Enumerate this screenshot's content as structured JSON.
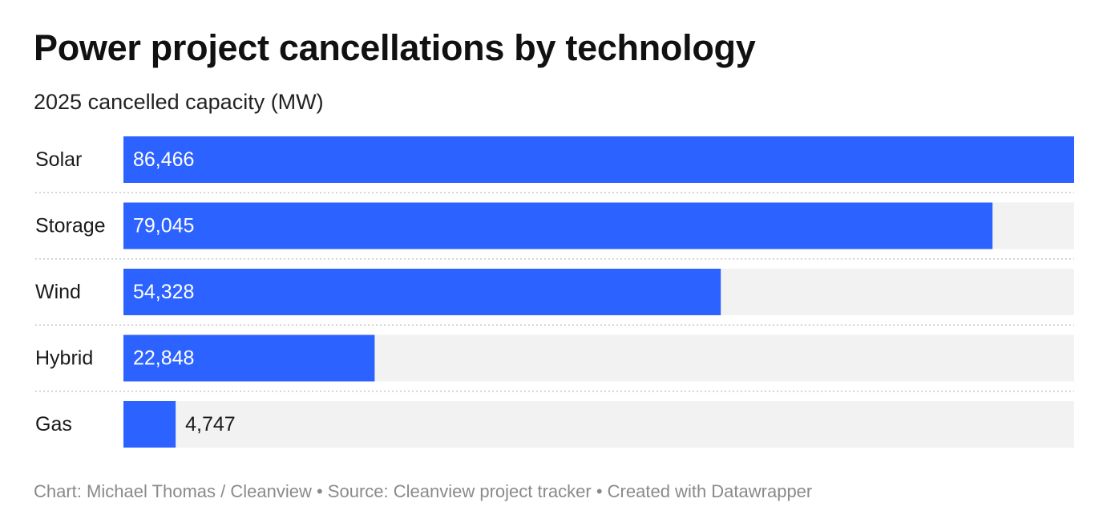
{
  "title": "Power project cancellations by technology",
  "subtitle": "2025 cancelled capacity (MW)",
  "footer": {
    "chart_credit": "Chart: Michael Thomas / Cleanview",
    "separator": "•",
    "source": "Source: Cleanview project tracker",
    "created_with": "Created with Datawrapper"
  },
  "colors": {
    "bar": "#2c62ff",
    "track": "#f2f2f2",
    "label_inside": "#ffffff",
    "label_outside": "#1a1a1a",
    "divider": "#c8c8c8"
  },
  "chart_data": {
    "type": "bar",
    "orientation": "horizontal",
    "title": "Power project cancellations by technology",
    "subtitle": "2025 cancelled capacity (MW)",
    "categories": [
      "Solar",
      "Storage",
      "Wind",
      "Hybrid",
      "Gas"
    ],
    "values": [
      86466,
      79045,
      54328,
      22848,
      4747
    ],
    "value_labels": [
      "86,466",
      "79,045",
      "54,328",
      "22,848",
      "4,747"
    ],
    "xlim": [
      0,
      86466
    ],
    "grid": false,
    "legend": "none"
  }
}
